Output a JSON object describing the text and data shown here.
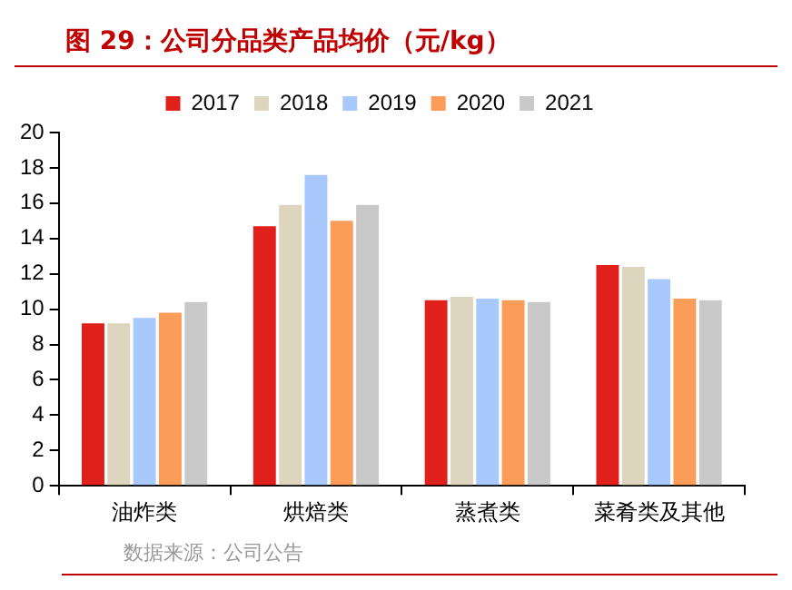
{
  "chart_data": {
    "type": "bar",
    "title": "图 29：公司分品类产品均价（元/kg）",
    "categories": [
      "油炸类",
      "烘焙类",
      "蒸煮类",
      "菜肴类及其他"
    ],
    "series": [
      {
        "name": "2017",
        "color": "#e0201a",
        "values": [
          9.2,
          14.7,
          10.5,
          12.5
        ]
      },
      {
        "name": "2018",
        "color": "#ded5bf",
        "values": [
          9.2,
          15.9,
          10.7,
          12.4
        ]
      },
      {
        "name": "2019",
        "color": "#a9c8fb",
        "values": [
          9.5,
          17.6,
          10.6,
          11.7
        ]
      },
      {
        "name": "2020",
        "color": "#fb9d58",
        "values": [
          9.8,
          15.0,
          10.5,
          10.6
        ]
      },
      {
        "name": "2021",
        "color": "#c9c9c9",
        "values": [
          10.4,
          15.9,
          10.4,
          10.5
        ]
      }
    ],
    "ylim": [
      0,
      20
    ],
    "yticks": [
      0,
      2,
      4,
      6,
      8,
      10,
      12,
      14,
      16,
      18,
      20
    ],
    "grid": false,
    "legend": "top",
    "annotations": [
      "数据来源：公司公告"
    ]
  }
}
